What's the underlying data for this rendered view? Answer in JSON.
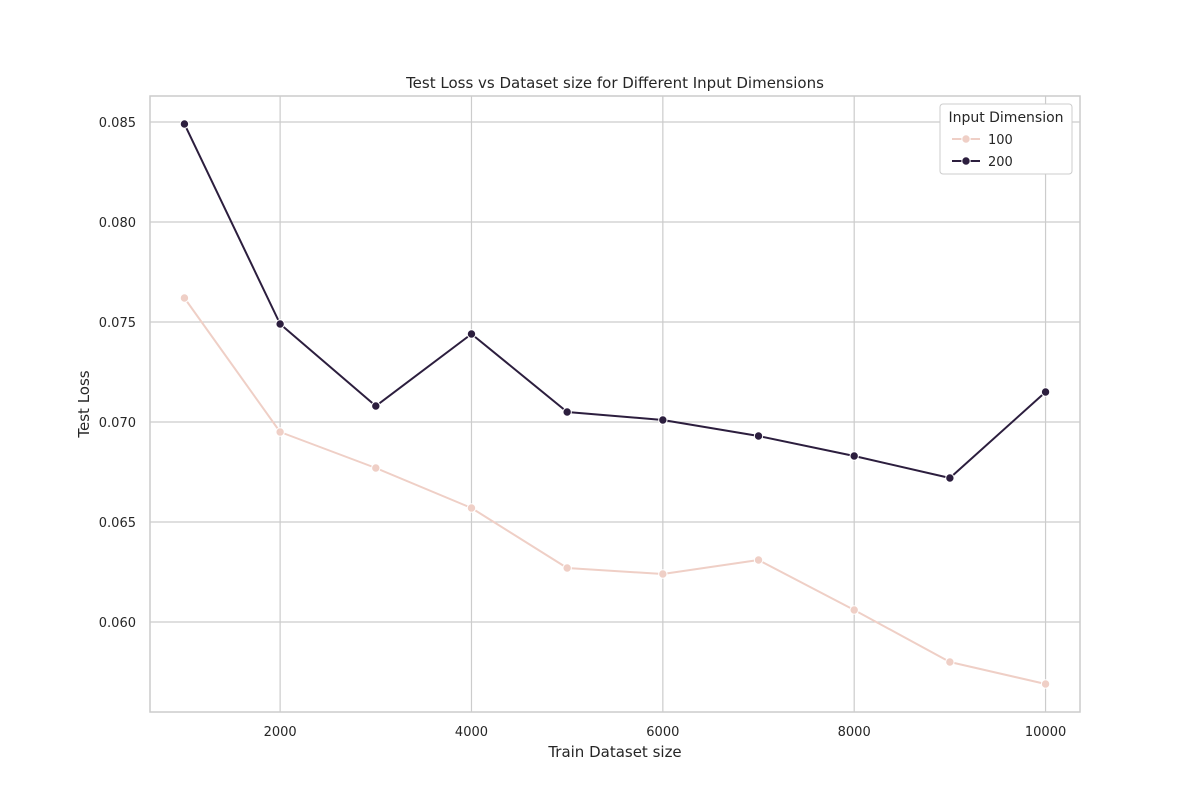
{
  "chart_data": {
    "type": "line",
    "title": "Test Loss vs Dataset size for Different Input Dimensions",
    "xlabel": "Train Dataset size",
    "ylabel": "Test Loss",
    "xlim": [
      640,
      10360
    ],
    "ylim": [
      0.0555,
      0.0863
    ],
    "x_ticks": [
      2000,
      4000,
      6000,
      8000,
      10000
    ],
    "x_tick_labels": [
      "2000",
      "4000",
      "6000",
      "8000",
      "10000"
    ],
    "y_ticks": [
      0.06,
      0.065,
      0.07,
      0.075,
      0.08,
      0.085
    ],
    "y_tick_labels": [
      "0.060",
      "0.065",
      "0.070",
      "0.075",
      "0.080",
      "0.085"
    ],
    "grid": true,
    "legend": {
      "title": "Input Dimension",
      "placement": "top-right"
    },
    "x": [
      1000,
      2000,
      3000,
      4000,
      5000,
      6000,
      7000,
      8000,
      9000,
      10000
    ],
    "series": [
      {
        "name": "100",
        "color": "#efcfc6",
        "values": [
          0.0762,
          0.0695,
          0.0677,
          0.0657,
          0.0627,
          0.0624,
          0.0631,
          0.0606,
          0.058,
          0.0569
        ]
      },
      {
        "name": "200",
        "color": "#2c1e3e",
        "values": [
          0.0849,
          0.0749,
          0.0708,
          0.0744,
          0.0705,
          0.0701,
          0.0693,
          0.0683,
          0.0672,
          0.0715
        ]
      }
    ]
  }
}
